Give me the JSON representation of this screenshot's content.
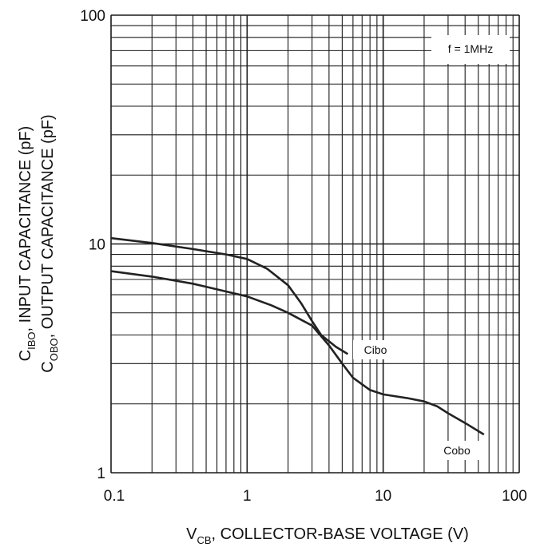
{
  "chart_data": {
    "type": "line",
    "xscale": "log",
    "yscale": "log",
    "xlim": [
      0.1,
      100
    ],
    "ylim": [
      1,
      100
    ],
    "x_ticks": [
      0.1,
      1,
      10,
      100
    ],
    "x_tick_labels": [
      "0.1",
      "1",
      "10",
      "100"
    ],
    "y_ticks": [
      1,
      10,
      100
    ],
    "y_tick_labels": [
      "1",
      "10",
      "100"
    ],
    "grid": true,
    "xlabel": {
      "main": "V",
      "sub": "CB",
      "rest": ", COLLECTOR-BASE VOLTAGE (V)"
    },
    "ylabel_line1": {
      "main": "C",
      "sub": "IBO",
      "rest": ", INPUT CAPACITANCE (pF)"
    },
    "ylabel_line2": {
      "main": "C",
      "sub": "OBO",
      "rest": ", OUTPUT CAPACITANCE (pF)"
    },
    "annotation": "f = 1MHz",
    "series": [
      {
        "name": "Cibo",
        "x": [
          0.1,
          0.2,
          0.4,
          0.7,
          1.0,
          1.4,
          2.0,
          2.5,
          3.0,
          3.5,
          4.5,
          5.5
        ],
        "y": [
          10.6,
          10.1,
          9.5,
          9.0,
          8.6,
          7.8,
          6.6,
          5.5,
          4.6,
          4.0,
          3.55,
          3.3
        ]
      },
      {
        "name": "Cobo",
        "x": [
          0.1,
          0.2,
          0.4,
          0.7,
          1.0,
          1.5,
          2.0,
          3.0,
          4.0,
          5.0,
          6.0,
          8.0,
          10,
          15,
          20,
          25,
          30,
          40,
          55
        ],
        "y": [
          7.6,
          7.2,
          6.7,
          6.2,
          5.9,
          5.4,
          5.0,
          4.4,
          3.6,
          3.0,
          2.6,
          2.3,
          2.2,
          2.12,
          2.05,
          1.95,
          1.82,
          1.65,
          1.47
        ]
      }
    ],
    "colors": {
      "line": "#222222",
      "grid": "#1a1a1a",
      "background": "#ffffff"
    }
  }
}
